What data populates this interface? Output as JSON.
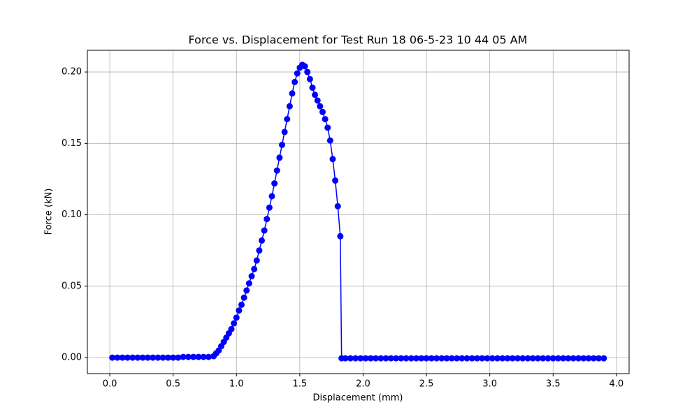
{
  "chart_data": {
    "type": "line",
    "title": "Force vs. Displacement for Test Run 18 06-5-23 10 44 05 AM",
    "x_label": "Displacement (mm)",
    "y_label": "Force (kN)",
    "x": [
      0.02,
      0.06,
      0.1,
      0.14,
      0.18,
      0.22,
      0.26,
      0.3,
      0.34,
      0.38,
      0.42,
      0.46,
      0.5,
      0.54,
      0.58,
      0.62,
      0.66,
      0.7,
      0.74,
      0.78,
      0.82,
      0.84,
      0.86,
      0.88,
      0.9,
      0.92,
      0.94,
      0.96,
      0.98,
      1.0,
      1.02,
      1.04,
      1.06,
      1.08,
      1.1,
      1.12,
      1.14,
      1.16,
      1.18,
      1.2,
      1.22,
      1.24,
      1.26,
      1.28,
      1.3,
      1.32,
      1.34,
      1.36,
      1.38,
      1.4,
      1.42,
      1.44,
      1.46,
      1.48,
      1.5,
      1.52,
      1.54,
      1.56,
      1.58,
      1.6,
      1.62,
      1.64,
      1.66,
      1.68,
      1.7,
      1.72,
      1.74,
      1.76,
      1.78,
      1.8,
      1.82,
      1.83,
      1.86,
      1.9,
      1.94,
      1.98,
      2.02,
      2.06,
      2.1,
      2.14,
      2.18,
      2.22,
      2.26,
      2.3,
      2.34,
      2.38,
      2.42,
      2.46,
      2.5,
      2.54,
      2.58,
      2.62,
      2.66,
      2.7,
      2.74,
      2.78,
      2.82,
      2.86,
      2.9,
      2.94,
      2.98,
      3.02,
      3.06,
      3.1,
      3.14,
      3.18,
      3.22,
      3.26,
      3.3,
      3.34,
      3.38,
      3.42,
      3.46,
      3.5,
      3.54,
      3.58,
      3.62,
      3.66,
      3.7,
      3.74,
      3.78,
      3.82,
      3.86,
      3.9
    ],
    "series": [
      {
        "name": "Force",
        "color": "#0000ff",
        "values": [
          0,
          0,
          0,
          0,
          0,
          0,
          0,
          0,
          0,
          0,
          0,
          0,
          0,
          0,
          0.0005,
          0.0005,
          0.0005,
          0.0005,
          0.0005,
          0.0005,
          0.001,
          0.003,
          0.005,
          0.008,
          0.011,
          0.014,
          0.017,
          0.02,
          0.024,
          0.028,
          0.033,
          0.037,
          0.042,
          0.047,
          0.052,
          0.057,
          0.062,
          0.068,
          0.075,
          0.082,
          0.089,
          0.097,
          0.105,
          0.113,
          0.122,
          0.131,
          0.14,
          0.149,
          0.158,
          0.167,
          0.176,
          0.185,
          0.193,
          0.199,
          0.203,
          0.205,
          0.204,
          0.2,
          0.195,
          0.189,
          0.184,
          0.18,
          0.176,
          0.172,
          0.167,
          0.161,
          0.152,
          0.139,
          0.124,
          0.106,
          0.085,
          -0.0005,
          -0.0005,
          -0.0005,
          -0.0005,
          -0.0005,
          -0.0005,
          -0.0005,
          -0.0005,
          -0.0005,
          -0.0005,
          -0.0005,
          -0.0005,
          -0.0005,
          -0.0005,
          -0.0005,
          -0.0005,
          -0.0005,
          -0.0005,
          -0.0005,
          -0.0005,
          -0.0005,
          -0.0005,
          -0.0005,
          -0.0005,
          -0.0005,
          -0.0005,
          -0.0005,
          -0.0005,
          -0.0005,
          -0.0005,
          -0.0005,
          -0.0005,
          -0.0005,
          -0.0005,
          -0.0005,
          -0.0005,
          -0.0005,
          -0.0005,
          -0.0005,
          -0.0005,
          -0.0005,
          -0.0005,
          -0.0005,
          -0.0005,
          -0.0005,
          -0.0005,
          -0.0005,
          -0.0005,
          -0.0005,
          -0.0005,
          -0.0005,
          -0.0005,
          -0.0005
        ]
      }
    ],
    "xlim": [
      -0.177,
      4.1
    ],
    "ylim": [
      -0.0112,
      0.2152
    ],
    "xticks": [
      {
        "value": 0,
        "label": "0.0"
      },
      0.5,
      {
        "value": 1,
        "label": "1.0"
      },
      1.5,
      {
        "value": 2,
        "label": "2.0"
      },
      2.5,
      {
        "value": 3,
        "label": "3.0"
      },
      3.5,
      {
        "value": 4,
        "label": "4.0"
      }
    ],
    "yticks": [
      {
        "value": 0,
        "label": "0.00"
      },
      {
        "value": 0.05,
        "label": "0.05"
      },
      {
        "value": 0.1,
        "label": "0.10"
      },
      {
        "value": 0.15,
        "label": "0.15"
      },
      {
        "value": 0.2,
        "label": "0.20"
      }
    ],
    "grid": true
  }
}
